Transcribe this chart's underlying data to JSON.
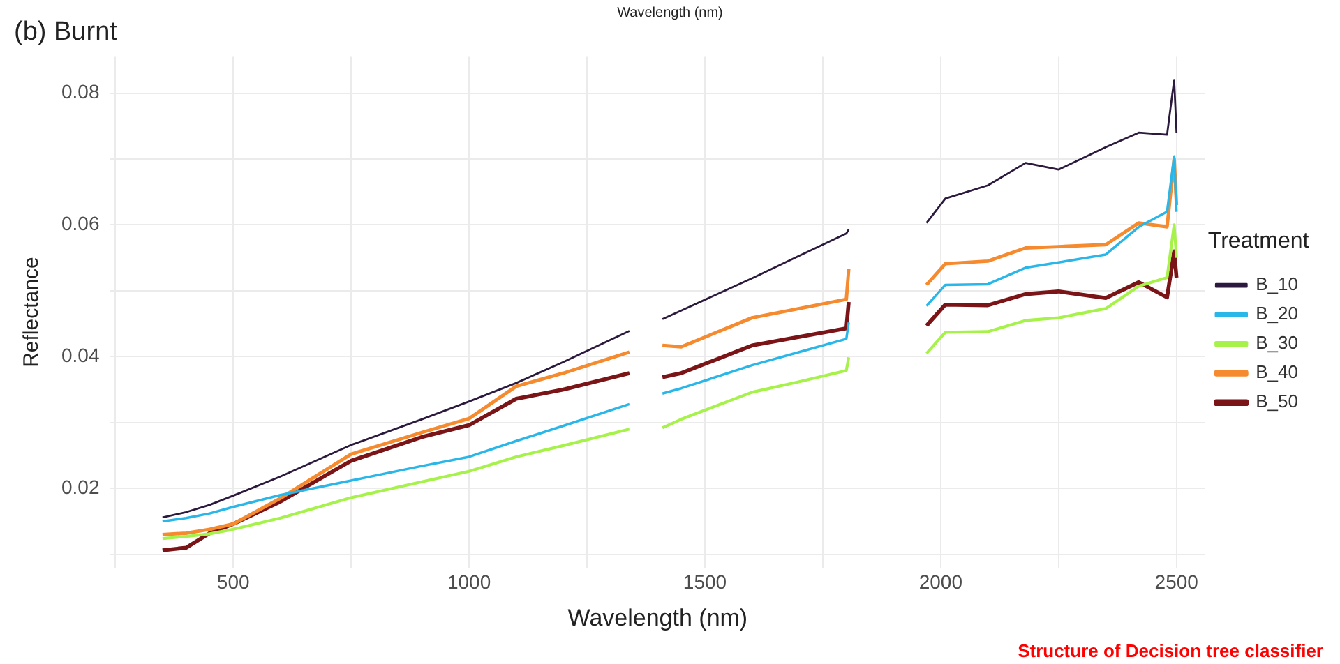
{
  "chart_data": {
    "type": "line",
    "title": "(b) Burnt",
    "xlabel": "Wavelength (nm)",
    "ylabel": "Reflectance",
    "legend_title": "Treatment",
    "legend": "right",
    "grid": true,
    "marker": "none",
    "line_style": "solid",
    "annotations": [
      "Wavelength (nm)",
      "Structure of Decision tree classifier"
    ],
    "xlim": [
      240,
      2560
    ],
    "xticks": [
      {
        "value": 250,
        "label": null
      },
      500,
      {
        "value": 750,
        "label": null
      },
      1000,
      {
        "value": 1250,
        "label": null
      },
      1500,
      {
        "value": 1750,
        "label": null
      },
      2000,
      {
        "value": 2250,
        "label": null
      },
      2500
    ],
    "ylim": [
      0.008,
      0.0855
    ],
    "yticks": [
      {
        "value": 0.01,
        "label": null
      },
      0.02,
      {
        "value": 0.03,
        "label": null
      },
      0.04,
      {
        "value": 0.05,
        "label": null
      },
      0.06,
      {
        "value": 0.07,
        "label": null
      },
      0.08
    ],
    "x": [
      350,
      400,
      450,
      500,
      600,
      750,
      900,
      1000,
      1100,
      1200,
      1340,
      1375,
      1410,
      1450,
      1600,
      1700,
      1800,
      1805,
      1890,
      1970,
      2010,
      2100,
      2180,
      2250,
      2350,
      2420,
      2480,
      2495,
      2500
    ],
    "series": [
      {
        "name": "B_10",
        "color": "#2b1a3d",
        "values": [
          0.0156,
          0.0164,
          0.0175,
          0.0189,
          0.0218,
          0.0266,
          0.0305,
          0.0332,
          0.036,
          0.0392,
          0.0439,
          null,
          0.0457,
          0.047,
          0.0519,
          0.0553,
          0.0587,
          0.0593,
          null,
          0.0603,
          0.064,
          0.066,
          0.0694,
          0.0684,
          0.0718,
          0.074,
          0.0737,
          0.082,
          0.074
        ]
      },
      {
        "name": "B_20",
        "color": "#29b6e8",
        "values": [
          0.015,
          0.0155,
          0.0162,
          0.0172,
          0.019,
          0.0212,
          0.0234,
          0.0248,
          0.0272,
          0.0295,
          0.0328,
          null,
          0.0344,
          0.0352,
          0.0387,
          0.0407,
          0.0427,
          0.0452,
          null,
          0.0477,
          0.0509,
          0.051,
          0.0535,
          0.0543,
          0.0555,
          0.0597,
          0.062,
          0.0704,
          0.062
        ]
      },
      {
        "name": "B_30",
        "color": "#a6f24a",
        "values": [
          0.0124,
          0.0127,
          0.0131,
          0.0138,
          0.0155,
          0.0186,
          0.021,
          0.0226,
          0.0248,
          0.0265,
          0.029,
          null,
          0.0292,
          0.0305,
          0.0346,
          0.0362,
          0.0379,
          0.0399,
          null,
          0.0405,
          0.0437,
          0.0438,
          0.0455,
          0.0459,
          0.0473,
          0.0507,
          0.052,
          0.06,
          0.055
        ]
      },
      {
        "name": "B_40",
        "color": "#f58a2e",
        "values": [
          0.013,
          0.0132,
          0.0138,
          0.0146,
          0.0185,
          0.0252,
          0.0285,
          0.0306,
          0.0355,
          0.0375,
          0.0407,
          null,
          0.0417,
          0.0415,
          0.0459,
          0.0473,
          0.0487,
          0.0533,
          null,
          0.0509,
          0.0541,
          0.0545,
          0.0565,
          0.0567,
          0.057,
          0.0603,
          0.0597,
          0.07,
          0.063
        ]
      },
      {
        "name": "B_50",
        "color": "#7a1416",
        "values": [
          0.0106,
          0.011,
          0.0132,
          0.0146,
          0.018,
          0.0242,
          0.0278,
          0.0296,
          0.0336,
          0.035,
          0.0375,
          null,
          0.0369,
          0.0375,
          0.0417,
          0.043,
          0.0443,
          0.0483,
          null,
          0.0447,
          0.0479,
          0.0478,
          0.0495,
          0.0499,
          0.0489,
          0.0513,
          0.049,
          0.056,
          0.052
        ]
      }
    ]
  }
}
